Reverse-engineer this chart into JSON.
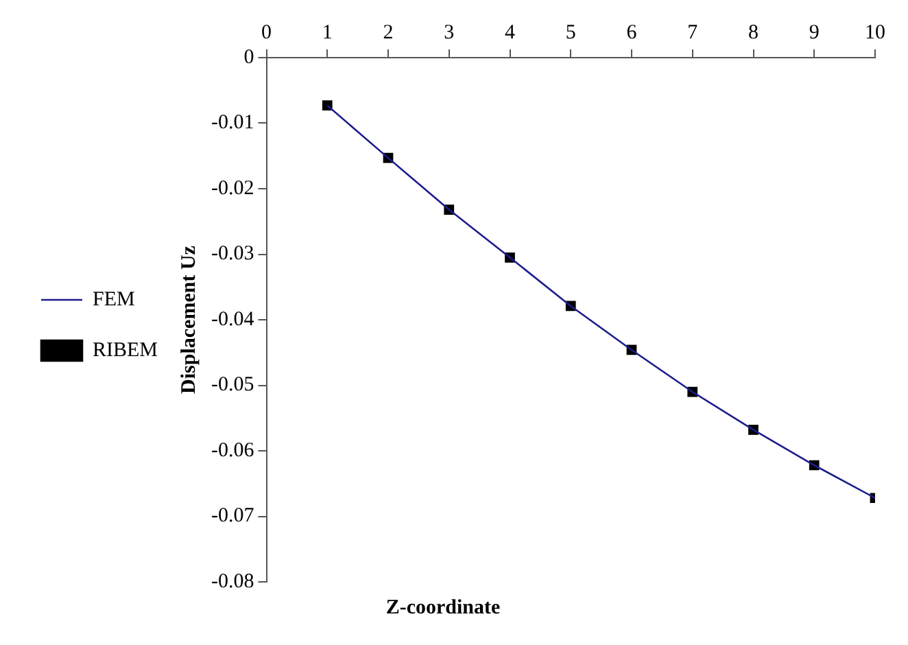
{
  "chart_data": {
    "type": "line",
    "xlabel": "Z-coordinate",
    "ylabel": "Displacement Uz",
    "x": [
      1,
      2,
      3,
      4,
      5,
      6,
      7,
      8,
      9,
      10
    ],
    "series": [
      {
        "name": "FEM",
        "color": "#1c1c8c",
        "marker": "none",
        "line_style": "solid",
        "values": [
          -0.0073,
          -0.0153,
          -0.0232,
          -0.0305,
          -0.0379,
          -0.0446,
          -0.051,
          -0.0568,
          -0.0622,
          -0.0672
        ]
      },
      {
        "name": "RIBEM",
        "type": "scatter",
        "color": "#000000",
        "marker": "square",
        "values": [
          -0.0073,
          -0.0153,
          -0.0232,
          -0.0305,
          -0.0379,
          -0.0446,
          -0.051,
          -0.0568,
          -0.0622,
          -0.0672
        ]
      }
    ],
    "xlim": [
      0,
      10
    ],
    "xticks": [
      0,
      1,
      2,
      3,
      4,
      5,
      6,
      7,
      8,
      9,
      10
    ],
    "ylim": [
      -0.08,
      0
    ],
    "yticks": [
      0,
      -0.01,
      -0.02,
      -0.03,
      -0.04,
      -0.05,
      -0.06,
      -0.07,
      -0.08
    ],
    "grid": false,
    "legend": "left"
  }
}
